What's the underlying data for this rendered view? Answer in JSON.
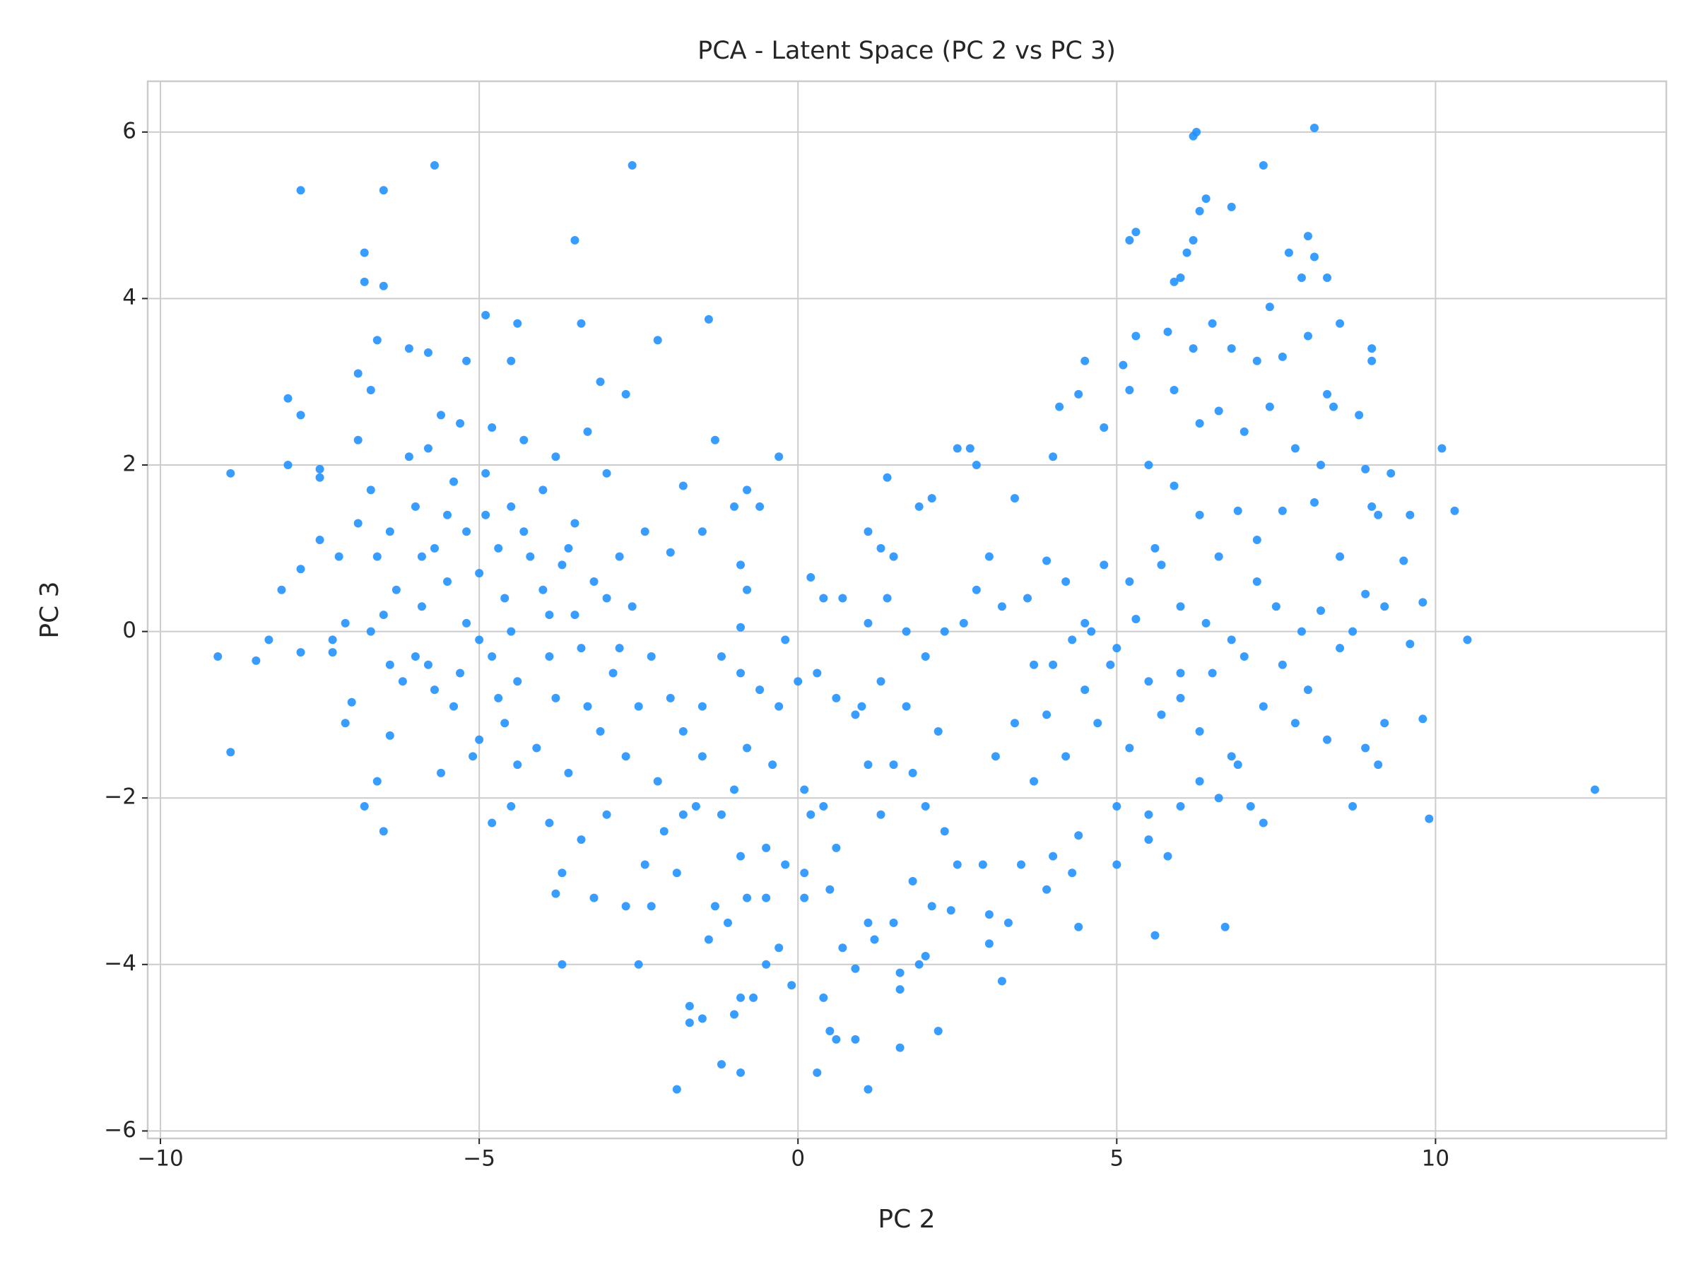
{
  "chart_data": {
    "type": "scatter",
    "title": "PCA - Latent Space (PC 2 vs PC 3)",
    "x_label": "PC 2",
    "y_label": "PC 3",
    "color": "#1e90ff",
    "grid": true,
    "xlim": [
      -10.2,
      13.62
    ],
    "ylim": [
      -6.09,
      6.61
    ],
    "xticks": [
      {
        "value": -10,
        "label": "−10"
      },
      {
        "value": -5,
        "label": "−5"
      },
      0,
      5,
      10
    ],
    "yticks": [
      {
        "value": -6,
        "label": "−6"
      },
      {
        "value": -4,
        "label": "−4"
      },
      {
        "value": -2,
        "label": "−2"
      },
      0,
      2,
      4,
      6
    ],
    "x": [
      -9.1,
      -8.9,
      -8.9,
      -8.5,
      -8.3,
      -8.1,
      -8.0,
      -8.0,
      -7.8,
      -7.8,
      -7.8,
      -7.8,
      -7.5,
      -7.5,
      -7.5,
      -7.3,
      -7.3,
      -7.1,
      -7.0,
      -6.9,
      -6.9,
      -6.8,
      -6.8,
      -6.7,
      -6.6,
      -6.6,
      -6.8,
      -6.5,
      -6.5,
      -6.5,
      -6.4,
      -6.1,
      -5.8,
      -5.7,
      -2.6,
      -3.5,
      -4.9,
      -4.4,
      -3.4,
      -2.2,
      -1.4,
      -4.5,
      -5.2,
      -3.1,
      -2.7,
      -6.9,
      -6.7,
      -6.6,
      -6.5,
      -6.4,
      -6.3,
      -6.2,
      -6.1,
      -6.0,
      -5.9,
      -5.8,
      -5.8,
      -5.7,
      -5.6,
      -5.6,
      -5.5,
      -5.4,
      -5.4,
      -5.3,
      -5.2,
      -5.2,
      -5.1,
      -5.0,
      -4.9,
      -4.8,
      -4.8,
      -4.7,
      -4.6,
      -4.6,
      -4.5,
      -4.4,
      -4.3,
      -4.2,
      -4.1,
      -4.0,
      -3.9,
      -3.8,
      -3.8,
      -3.7,
      -3.6,
      -3.5,
      -3.4,
      -3.3,
      -3.2,
      -3.1,
      -3.0,
      -2.9,
      -2.8,
      -2.7,
      -2.6,
      -2.5,
      -2.4,
      -2.3,
      -2.2,
      -6.0,
      -5.9,
      -5.5,
      -5.3,
      -5.0,
      -4.9,
      -4.7,
      -4.5,
      -4.3,
      -4.0,
      -3.9,
      -3.6,
      -3.5,
      -3.3,
      -3.0,
      -2.8,
      -6.7,
      -7.1,
      -7.2,
      -6.4,
      -5.7,
      -5.0,
      -4.4,
      -3.9,
      -3.7,
      -3.4,
      -3.2,
      -3.8,
      -3.7,
      -4.5,
      -4.8,
      -3.0,
      -2.7,
      -2.4,
      -2.3,
      -2.5,
      -2.1,
      -1.9,
      -1.9,
      -1.7,
      -1.7,
      -1.5,
      -1.2,
      -1.0,
      -0.9,
      -0.9,
      -0.7,
      -0.1,
      0.3,
      0.5,
      0.6,
      0.9,
      1.1,
      1.6,
      2.2,
      1.6,
      1.6,
      1.9,
      2.0,
      0.4,
      -1.4,
      -1.3,
      -1.1,
      -0.8,
      -0.5,
      -0.3,
      -0.5,
      0.1,
      0.5,
      0.7,
      0.9,
      1.1,
      1.2,
      1.5,
      1.8,
      2.1,
      2.4,
      0.1,
      -0.2,
      -0.5,
      -0.9,
      -1.2,
      -1.6,
      -1.8,
      -1.5,
      -1.0,
      -0.8,
      -0.4,
      0.1,
      0.2,
      0.4,
      0.6,
      0.9,
      1.1,
      1.3,
      1.5,
      1.8,
      2.0,
      2.3,
      2.5,
      2.2,
      1.7,
      1.3,
      1.0,
      0.6,
      0.3,
      0.0,
      -0.3,
      -0.6,
      -0.9,
      -1.2,
      -1.5,
      -1.8,
      -2.0,
      -0.2,
      0.4,
      0.7,
      1.1,
      1.4,
      1.7,
      2.0,
      2.3,
      1.1,
      1.4,
      0.2,
      -0.3,
      -0.6,
      -0.8,
      -1.0,
      -1.5,
      -2.0,
      -1.8,
      -1.3,
      -0.9,
      -0.8,
      -0.9,
      1.3,
      1.5,
      2.1,
      1.9,
      2.5,
      2.7,
      2.8,
      3.0,
      3.2,
      3.3,
      3.0,
      3.5,
      2.9,
      3.9,
      4.0,
      4.3,
      4.4,
      4.4,
      5.0,
      5.0,
      5.5,
      5.5,
      5.6,
      5.8,
      6.0,
      6.3,
      6.7,
      6.6,
      7.1,
      7.3,
      6.9,
      3.1,
      3.4,
      3.7,
      3.9,
      4.2,
      4.5,
      4.7,
      4.9,
      5.2,
      5.5,
      5.7,
      6.0,
      6.3,
      6.5,
      6.8,
      7.0,
      7.3,
      7.6,
      7.8,
      8.0,
      8.3,
      8.5,
      8.7,
      8.9,
      9.1,
      9.2,
      9.8,
      9.9,
      12.5,
      10.5,
      9.6,
      9.2,
      9.5,
      9.8,
      9.6,
      10.3,
      10.1,
      9.0,
      9.1,
      9.3,
      8.9,
      8.8,
      9.0,
      9.0,
      8.5,
      8.0,
      7.6,
      7.2,
      6.8,
      6.5,
      6.2,
      5.8,
      5.3,
      5.1,
      4.5,
      4.1,
      4.0,
      4.4,
      4.8,
      5.2,
      5.5,
      5.9,
      6.3,
      6.6,
      7.0,
      7.4,
      7.8,
      8.2,
      8.4,
      8.1,
      7.6,
      7.2,
      6.9,
      6.6,
      6.3,
      5.9,
      5.6,
      5.2,
      4.8,
      4.5,
      4.2,
      3.9,
      3.6,
      3.4,
      3.0,
      2.6,
      2.8,
      3.2,
      3.7,
      4.0,
      4.3,
      4.6,
      5.0,
      5.3,
      5.7,
      6.0,
      6.4,
      6.8,
      7.2,
      7.5,
      7.9,
      8.2,
      8.5,
      8.7,
      8.9,
      5.2,
      5.3,
      5.9,
      6.0,
      6.1,
      6.2,
      6.3,
      6.4,
      6.2,
      6.25,
      6.8,
      7.3,
      7.4,
      7.7,
      8.0,
      7.9,
      8.1,
      8.3,
      8.1,
      8.3,
      6.0
    ],
    "values": [
      -0.3,
      1.9,
      -1.45,
      -0.35,
      -0.1,
      0.5,
      2.0,
      2.8,
      5.3,
      2.6,
      0.75,
      -0.25,
      1.85,
      1.95,
      1.1,
      -0.1,
      -0.25,
      -1.1,
      -0.85,
      2.3,
      3.1,
      4.55,
      4.2,
      2.9,
      3.5,
      -1.8,
      -2.1,
      -2.4,
      5.3,
      4.15,
      -1.25,
      3.4,
      3.35,
      5.6,
      5.6,
      4.7,
      3.8,
      3.7,
      3.7,
      3.5,
      3.75,
      3.25,
      3.25,
      3.0,
      2.85,
      1.3,
      1.7,
      0.9,
      0.2,
      1.2,
      0.5,
      -0.6,
      2.1,
      1.5,
      0.3,
      -0.4,
      2.2,
      1.0,
      -1.7,
      2.6,
      0.6,
      -0.9,
      1.8,
      2.5,
      0.1,
      1.2,
      -1.5,
      0.7,
      1.9,
      -0.3,
      2.45,
      1.0,
      -1.1,
      0.4,
      1.5,
      -0.6,
      2.3,
      0.9,
      -1.4,
      1.7,
      0.2,
      -0.8,
      2.1,
      0.8,
      -1.7,
      1.3,
      -0.2,
      2.4,
      0.6,
      -1.2,
      1.9,
      -0.5,
      0.9,
      -1.5,
      0.3,
      -0.9,
      1.2,
      -0.3,
      -1.8,
      -0.3,
      0.9,
      1.4,
      -0.5,
      -0.1,
      1.4,
      -0.8,
      0.0,
      1.2,
      0.5,
      -0.3,
      1.0,
      0.2,
      -0.9,
      0.4,
      -0.2,
      0.0,
      0.1,
      0.9,
      -0.4,
      -0.7,
      -1.3,
      -1.6,
      -2.3,
      -2.9,
      -2.5,
      -3.2,
      -3.15,
      -4.0,
      -2.1,
      -2.3,
      -2.2,
      -3.3,
      -2.8,
      -3.3,
      -4.0,
      -2.4,
      -2.9,
      -5.5,
      -4.5,
      -4.7,
      -4.65,
      -5.2,
      -4.6,
      -5.3,
      -4.4,
      -4.4,
      -4.25,
      -5.3,
      -4.8,
      -4.9,
      -4.9,
      -5.5,
      -5.0,
      -4.8,
      -4.3,
      -4.1,
      -4.0,
      -3.9,
      -4.4,
      -3.7,
      -3.3,
      -3.5,
      -3.2,
      -3.2,
      -3.8,
      -4.0,
      -3.2,
      -3.1,
      -3.8,
      -4.05,
      -3.5,
      -3.7,
      -3.5,
      -3.0,
      -3.3,
      -3.35,
      -2.9,
      -2.8,
      -2.6,
      -2.7,
      -2.2,
      -2.1,
      -2.2,
      -1.5,
      -1.9,
      -1.4,
      -1.6,
      -1.9,
      -2.2,
      -2.1,
      -2.6,
      -1.0,
      -1.6,
      -2.2,
      -1.6,
      -1.7,
      -2.1,
      -2.4,
      -2.8,
      -1.2,
      -0.9,
      -0.6,
      -0.9,
      -0.8,
      -0.5,
      -0.6,
      -0.9,
      -0.7,
      -0.5,
      -0.3,
      -0.9,
      -1.2,
      -0.8,
      -0.1,
      0.4,
      0.4,
      0.1,
      0.4,
      0.0,
      -0.3,
      0.0,
      1.2,
      1.85,
      0.65,
      2.1,
      1.5,
      1.7,
      1.5,
      1.2,
      0.95,
      1.75,
      2.3,
      0.8,
      0.5,
      0.05,
      1.0,
      0.9,
      1.6,
      1.5,
      2.2,
      2.2,
      2.0,
      -3.4,
      -4.2,
      -3.5,
      -3.75,
      -2.8,
      -2.8,
      -3.1,
      -2.7,
      -2.9,
      -3.55,
      -2.45,
      -2.8,
      -2.1,
      -2.2,
      -2.5,
      -3.65,
      -2.7,
      -2.1,
      -1.8,
      -3.55,
      -2.0,
      -2.1,
      -2.3,
      -1.6,
      -1.5,
      -1.1,
      -1.8,
      -1.0,
      -1.5,
      -0.7,
      -1.1,
      -0.4,
      -1.4,
      -0.6,
      -1.0,
      -0.8,
      -1.2,
      -0.5,
      -1.5,
      -0.3,
      -0.9,
      -0.4,
      -1.1,
      -0.7,
      -1.3,
      -0.2,
      -2.1,
      -1.4,
      -1.6,
      -1.1,
      -1.05,
      -2.25,
      -1.9,
      -0.1,
      -0.15,
      0.3,
      0.85,
      0.35,
      1.4,
      1.45,
      2.2,
      1.5,
      1.4,
      1.9,
      1.95,
      2.6,
      3.25,
      3.4,
      3.7,
      3.55,
      3.3,
      3.25,
      3.4,
      3.7,
      3.4,
      3.6,
      3.55,
      3.2,
      3.25,
      2.7,
      2.1,
      2.85,
      2.45,
      2.9,
      2.0,
      2.9,
      2.5,
      2.65,
      2.4,
      2.7,
      2.2,
      2.0,
      2.7,
      1.55,
      1.45,
      1.1,
      1.45,
      0.9,
      1.4,
      1.75,
      1.0,
      0.6,
      0.8,
      0.1,
      0.6,
      0.85,
      0.4,
      1.6,
      0.9,
      0.1,
      0.5,
      0.3,
      -0.4,
      -0.4,
      -0.1,
      0.0,
      -0.2,
      0.15,
      0.8,
      0.3,
      0.1,
      -0.1,
      0.6,
      0.3,
      0.0,
      0.25,
      0.9,
      0.0,
      0.45,
      4.7,
      4.8,
      4.2,
      4.25,
      4.55,
      4.7,
      5.05,
      5.2,
      5.95,
      6.0,
      5.1,
      5.6,
      3.9,
      4.55,
      4.75,
      4.25,
      4.5,
      4.25,
      6.05,
      2.85,
      -0.5
    ]
  }
}
